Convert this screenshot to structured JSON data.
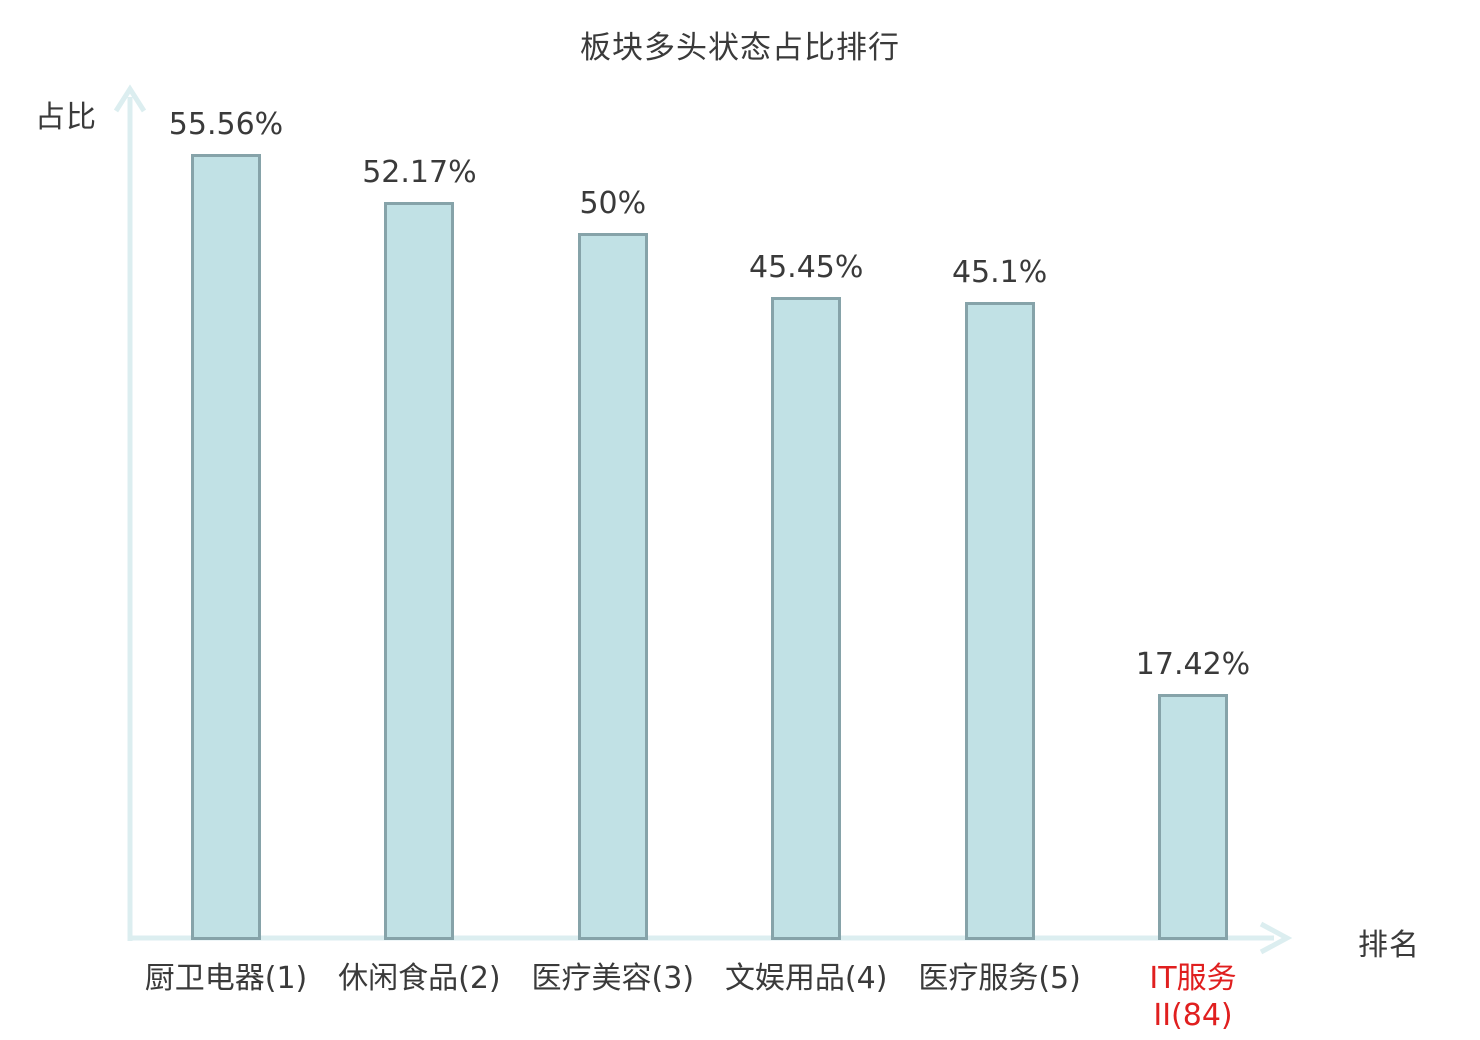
{
  "chart_data": {
    "type": "bar",
    "title": "板块多头状态占比排行",
    "xlabel": "排名",
    "ylabel": "占比",
    "categories": [
      "厨卫电器(1)",
      "休闲食品(2)",
      "医疗美容(3)",
      "文娱用品(4)",
      "医疗服务(5)",
      "IT服务II(84)"
    ],
    "category_display": [
      [
        "厨卫电器(1)"
      ],
      [
        "休闲食品(2)"
      ],
      [
        "医疗美容(3)"
      ],
      [
        "文娱用品(4)"
      ],
      [
        "医疗服务(5)"
      ],
      [
        "IT服务",
        "II(84)"
      ]
    ],
    "values": [
      55.56,
      52.17,
      50,
      45.45,
      45.1,
      17.42
    ],
    "value_labels": [
      "55.56%",
      "52.17%",
      "50%",
      "45.45%",
      "45.1%",
      "17.42%"
    ],
    "ylim": [
      0,
      60
    ],
    "grid": false,
    "legend": "none",
    "highlight_index": 5,
    "colors": {
      "bar_fill": "#c1e1e5",
      "bar_border": "#86a3a9",
      "axis": "#dceef0",
      "text": "#3a3a3a",
      "highlight_text": "#e01f1f",
      "background": "#ffffff"
    }
  }
}
